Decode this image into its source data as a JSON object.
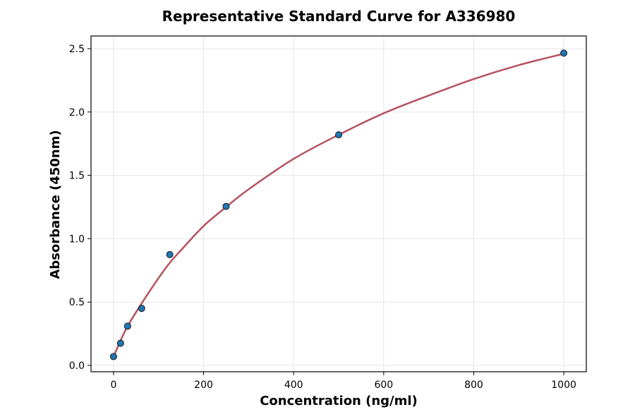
{
  "chart_data": {
    "type": "scatter",
    "title": "Representative Standard Curve for A336980",
    "xlabel": "Concentration (ng/ml)",
    "ylabel": "Absorbance (450nm)",
    "xlim": [
      -50,
      1050
    ],
    "ylim": [
      -0.05,
      2.6
    ],
    "xticks": [
      0,
      200,
      400,
      600,
      800,
      1000
    ],
    "yticks": [
      0.0,
      0.5,
      1.0,
      1.5,
      2.0,
      2.5
    ],
    "xtick_labels": [
      "0",
      "200",
      "400",
      "600",
      "800",
      "1000"
    ],
    "ytick_labels": [
      "0.0",
      "0.5",
      "1.0",
      "1.5",
      "2.0",
      "2.5"
    ],
    "grid": true,
    "legend": "none",
    "series": [
      {
        "kind": "points",
        "x": [
          0,
          15.6,
          31.25,
          62.5,
          125,
          250,
          500,
          1000
        ],
        "y": [
          0.07,
          0.175,
          0.31,
          0.45,
          0.875,
          1.255,
          1.82,
          2.465
        ],
        "color": "#1f77b4"
      },
      {
        "kind": "fit",
        "color": "#b5525f",
        "x": [
          0,
          10,
          20,
          31.25,
          50,
          62.5,
          100,
          125,
          150,
          200,
          250,
          300,
          400,
          500,
          600,
          700,
          800,
          900,
          1000
        ],
        "y": [
          0.07,
          0.15,
          0.23,
          0.31,
          0.42,
          0.49,
          0.69,
          0.81,
          0.91,
          1.1,
          1.25,
          1.39,
          1.63,
          1.82,
          1.99,
          2.13,
          2.26,
          2.37,
          2.46
        ]
      }
    ]
  }
}
